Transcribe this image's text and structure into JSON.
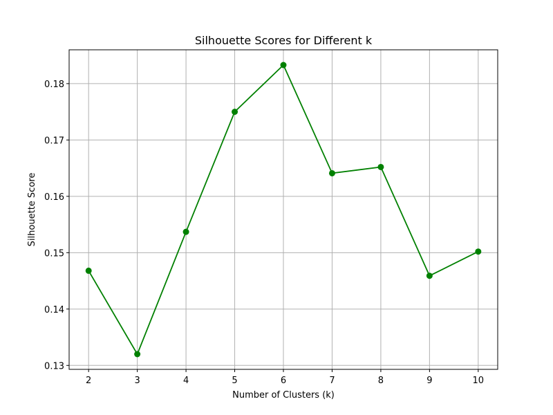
{
  "chart_data": {
    "type": "line",
    "title": "Silhouette Scores for Different k",
    "xlabel": "Number of Clusters (k)",
    "ylabel": "Silhouette Score",
    "x": [
      2,
      3,
      4,
      5,
      6,
      7,
      8,
      9,
      10
    ],
    "series": [
      {
        "values": [
          0.1468,
          0.132,
          0.1537,
          0.175,
          0.1833,
          0.1641,
          0.1652,
          0.1459,
          0.1502
        ],
        "color": "#008000",
        "marker": "circle"
      }
    ],
    "xlim": [
      1.6,
      10.4
    ],
    "ylim": [
      0.1293,
      0.186
    ],
    "xticks": [
      2,
      3,
      4,
      5,
      6,
      7,
      8,
      9,
      10
    ],
    "yticks": [
      0.13,
      0.14,
      0.15,
      0.16,
      0.17,
      0.18
    ],
    "ytick_labels": [
      "0.13",
      "0.14",
      "0.15",
      "0.16",
      "0.17",
      "0.18"
    ],
    "grid": true,
    "legend": "none"
  }
}
